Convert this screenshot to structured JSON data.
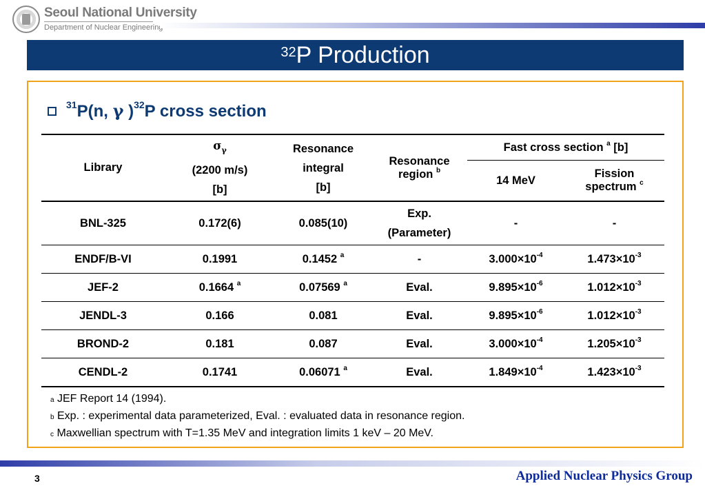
{
  "header": {
    "university": "Seoul National University",
    "department": "Department of Nuclear Engineering"
  },
  "slide": {
    "title_sup": "32",
    "title_main": "P Production"
  },
  "bullet": {
    "pre_sup": "31",
    "part1": "P(n, ",
    "gamma": "γ",
    "part2": " )",
    "mid_sup": "32",
    "part3": "P cross section"
  },
  "table": {
    "headers": {
      "library": "Library",
      "sigma": "σ",
      "sigma_sub": "γ",
      "sigma_line2": "(2200 m/s)",
      "sigma_unit": "[b]",
      "res_int_line1": "Resonance",
      "res_int_line2": "integral",
      "res_int_unit": "[b]",
      "res_region_line1": "Resonance",
      "res_region_line2": "region",
      "res_region_sup": "b",
      "fast": "Fast cross section",
      "fast_sup": "a",
      "fast_unit": "[b]",
      "mev14": "14 MeV",
      "fission_line1": "Fission",
      "fission_line2": "spectrum",
      "fission_sup": "c"
    },
    "rows": [
      {
        "lib": "BNL-325",
        "sigma": "0.172(6)",
        "sigma_sup": "",
        "ri": "0.085(10)",
        "ri_sup": "",
        "region_line1": "Exp.",
        "region_line2": "(Parameter)",
        "f14": "-",
        "f14_exp": "",
        "fis": "-",
        "fis_exp": ""
      },
      {
        "lib": "ENDF/B-VI",
        "sigma": "0.1991",
        "sigma_sup": "",
        "ri": "0.1452",
        "ri_sup": "a",
        "region": "-",
        "f14": "3.000×10",
        "f14_exp": "-4",
        "fis": "1.473×10",
        "fis_exp": "-3"
      },
      {
        "lib": "JEF-2",
        "sigma": "0.1664",
        "sigma_sup": "a",
        "ri": "0.07569",
        "ri_sup": "a",
        "region": "Eval.",
        "f14": "9.895×10",
        "f14_exp": "-6",
        "fis": "1.012×10",
        "fis_exp": "-3"
      },
      {
        "lib": "JENDL-3",
        "sigma": "0.166",
        "sigma_sup": "",
        "ri": "0.081",
        "ri_sup": "",
        "region": "Eval.",
        "f14": "9.895×10",
        "f14_exp": "-6",
        "fis": "1.012×10",
        "fis_exp": "-3"
      },
      {
        "lib": "BROND-2",
        "sigma": "0.181",
        "sigma_sup": "",
        "ri": "0.087",
        "ri_sup": "",
        "region": "Eval.",
        "f14": "3.000×10",
        "f14_exp": "-4",
        "fis": "1.205×10",
        "fis_exp": "-3"
      },
      {
        "lib": "CENDL-2",
        "sigma": "0.1741",
        "sigma_sup": "",
        "ri": "0.06071",
        "ri_sup": "a",
        "region": "Eval.",
        "f14": "1.849×10",
        "f14_exp": "-4",
        "fis": "1.423×10",
        "fis_exp": "-3"
      }
    ]
  },
  "footnotes": [
    {
      "mark": "a",
      "text": " JEF Report 14 (1994)."
    },
    {
      "mark": "b",
      "text": " Exp. : experimental data parameterized, Eval. : evaluated data in resonance region."
    },
    {
      "mark": "c",
      "text": " Maxwellian spectrum with T=1.35 MeV and integration limits 1 keV – 20 MeV."
    }
  ],
  "footer": {
    "page": "3",
    "group": "Applied Nuclear Physics Group"
  },
  "colors": {
    "title_bar": "#0d3a73",
    "content_border": "#f2a31a",
    "group_text": "#0d2b9a"
  }
}
